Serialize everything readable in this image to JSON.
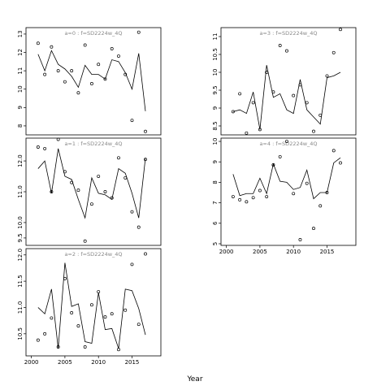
{
  "x_label": "Year",
  "chart_data": [
    {
      "type": "line",
      "title": "a=0  :  f=SD2224w_4Q",
      "x": [
        2001,
        2002,
        2003,
        2004,
        2005,
        2006,
        2007,
        2008,
        2009,
        2010,
        2011,
        2012,
        2013,
        2014,
        2015,
        2016,
        2017
      ],
      "xlim": [
        1999.2,
        2019.3
      ],
      "ylim": [
        7.51,
        13.35
      ],
      "yticks": [
        8,
        9,
        10,
        11,
        12,
        13
      ],
      "series": [
        {
          "mode": "markers",
          "color": "#000000",
          "values": [
            12.5,
            10.8,
            12.3,
            11.0,
            10.4,
            11.0,
            9.8,
            12.4,
            10.3,
            11.35,
            10.55,
            12.2,
            11.8,
            10.8,
            8.3,
            13.1,
            7.7
          ]
        },
        {
          "mode": "lines",
          "color": "#000000",
          "values": [
            11.9,
            11.0,
            12.1,
            11.35,
            11.1,
            10.7,
            10.1,
            11.3,
            10.8,
            10.8,
            10.55,
            11.6,
            11.5,
            10.9,
            10.0,
            11.95,
            8.8
          ]
        }
      ]
    },
    {
      "type": "line",
      "title": "a=3  :  f=SD2224w_4Q",
      "x": [
        2001,
        2002,
        2003,
        2004,
        2005,
        2006,
        2007,
        2008,
        2009,
        2010,
        2011,
        2012,
        2013,
        2014,
        2015,
        2016,
        2017
      ],
      "xlim": [
        1999.2,
        2019.3
      ],
      "ylim": [
        8.25,
        11.25
      ],
      "yticks": [
        8.5,
        9,
        9.5,
        10,
        10.5,
        11
      ],
      "series": [
        {
          "mode": "markers",
          "color": "#000000",
          "values": [
            8.9,
            9.4,
            8.3,
            9.15,
            8.4,
            10.0,
            9.45,
            10.75,
            10.6,
            9.35,
            9.65,
            9.15,
            8.35,
            8.8,
            9.9,
            10.55,
            11.2
          ]
        },
        {
          "mode": "lines",
          "color": "#000000",
          "values": [
            8.9,
            8.95,
            8.85,
            9.45,
            8.4,
            10.2,
            9.3,
            9.4,
            8.95,
            8.85,
            9.8,
            8.95,
            8.75,
            8.55,
            9.85,
            9.9,
            10.0
          ]
        }
      ]
    },
    {
      "type": "line",
      "title": "a=1  :  f=SD2224w_4Q",
      "x": [
        2001,
        2002,
        2003,
        2004,
        2005,
        2006,
        2007,
        2008,
        2009,
        2010,
        2011,
        2012,
        2013,
        2014,
        2015,
        2016,
        2017
      ],
      "xlim": [
        1999.2,
        2019.3
      ],
      "ylim": [
        9.26,
        12.74
      ],
      "yticks": [
        9.5,
        {
          "value": 10,
          "label": "10.0"
        },
        {
          "value": 11,
          "label": "11.0"
        },
        {
          "value": 12,
          "label": "12.0"
        }
      ],
      "series": [
        {
          "mode": "markers",
          "color": "#000000",
          "values": [
            12.45,
            12.4,
            11.0,
            12.7,
            11.65,
            11.3,
            11.05,
            9.4,
            10.6,
            11.5,
            11.0,
            10.8,
            12.1,
            11.45,
            10.35,
            9.85,
            12.05
          ]
        },
        {
          "mode": "lines",
          "color": "#000000",
          "values": [
            11.75,
            12.0,
            10.95,
            12.4,
            11.5,
            11.4,
            10.75,
            10.15,
            11.45,
            10.95,
            10.9,
            10.75,
            11.75,
            11.6,
            10.95,
            10.15,
            12.1
          ]
        }
      ]
    },
    {
      "type": "line",
      "title": "a=4  :  f=SD2224w_4Q",
      "x": [
        2001,
        2002,
        2003,
        2004,
        2005,
        2006,
        2007,
        2008,
        2009,
        2010,
        2011,
        2012,
        2013,
        2014,
        2015,
        2016,
        2017
      ],
      "xlim": [
        1999.2,
        2019.3
      ],
      "xticks": [
        2000,
        2005,
        2010,
        2015
      ],
      "ylim": [
        4.92,
        10.16
      ],
      "yticks": [
        5,
        6,
        7,
        8,
        9,
        10
      ],
      "series": [
        {
          "mode": "markers",
          "color": "#000000",
          "values": [
            7.3,
            7.15,
            7.05,
            7.25,
            7.6,
            7.3,
            8.85,
            9.25,
            10.0,
            7.45,
            5.2,
            7.95,
            5.75,
            6.85,
            7.5,
            9.55,
            8.95
          ]
        },
        {
          "mode": "lines",
          "color": "#000000",
          "values": [
            8.4,
            7.35,
            7.45,
            7.45,
            8.2,
            7.45,
            8.9,
            8.05,
            8.0,
            7.65,
            7.75,
            8.6,
            7.2,
            7.5,
            7.5,
            8.95,
            9.2
          ]
        }
      ]
    },
    {
      "type": "line",
      "title": "a=2  :  f=SD2224w_4Q",
      "x": [
        2001,
        2002,
        2003,
        2004,
        2005,
        2006,
        2007,
        2008,
        2009,
        2010,
        2011,
        2012,
        2013,
        2014,
        2015,
        2016,
        2017
      ],
      "xlim": [
        1999.2,
        2019.3
      ],
      "xticks": [
        2000,
        2005,
        2010,
        2015
      ],
      "ylim": [
        10.08,
        12.12
      ],
      "yticks": [
        10.5,
        {
          "value": 11,
          "label": "11.0"
        },
        11.5,
        {
          "value": 12,
          "label": "12.0"
        }
      ],
      "series": [
        {
          "mode": "markers",
          "color": "#000000",
          "values": [
            10.38,
            10.5,
            10.8,
            10.25,
            11.55,
            10.9,
            10.65,
            10.25,
            11.05,
            11.3,
            10.82,
            10.88,
            10.2,
            10.95,
            11.82,
            10.68,
            12.02
          ]
        },
        {
          "mode": "lines",
          "color": "#000000",
          "values": [
            11.0,
            10.88,
            11.35,
            10.22,
            11.85,
            11.02,
            11.07,
            10.35,
            10.32,
            11.28,
            10.58,
            10.6,
            10.22,
            11.35,
            11.32,
            10.98,
            10.48
          ]
        }
      ]
    }
  ]
}
